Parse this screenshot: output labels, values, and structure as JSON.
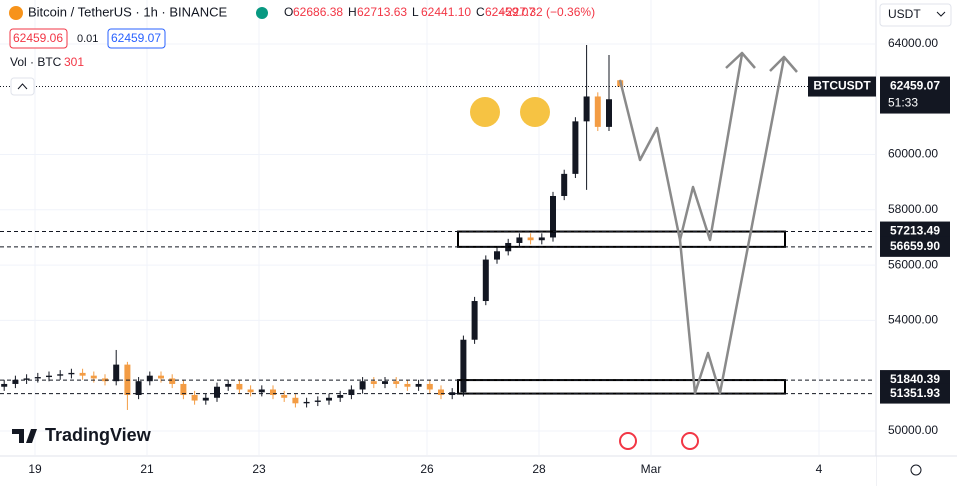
{
  "header": {
    "symbol_title": "Bitcoin / TetherUS · 1h · BINANCE",
    "ohlc": [
      {
        "label": "O",
        "value": "62686.38"
      },
      {
        "label": "H",
        "value": "62713.63"
      },
      {
        "label": "L",
        "value": "62441.10"
      },
      {
        "label": "C",
        "value": "62459.07"
      }
    ],
    "change": "−227.32 (−0.36%)",
    "bid": "62459.06",
    "spread": "0.01",
    "ask": "62459.07",
    "volume_label": "Vol · BTC",
    "volume_value": "301",
    "currency": "USDT",
    "brand": "TradingView"
  },
  "chart_data": {
    "type": "candlestick",
    "x": [
      18.45,
      18.65,
      18.85,
      19.05,
      19.25,
      19.45,
      19.65,
      19.85,
      20.05,
      20.25,
      20.45,
      20.65,
      20.85,
      21.05,
      21.25,
      21.45,
      21.65,
      21.85,
      22.05,
      22.25,
      22.45,
      22.65,
      22.85,
      23.05,
      23.25,
      23.45,
      23.65,
      23.85,
      24.05,
      24.25,
      24.45,
      24.65,
      24.85,
      25.05,
      25.25,
      25.45,
      25.65,
      25.85,
      26.05,
      26.25,
      26.45,
      26.65,
      26.85,
      27.05,
      27.25,
      27.45,
      27.65,
      27.85,
      28.05,
      28.25,
      28.45,
      28.65,
      28.85,
      29.05,
      29.25,
      29.45
    ],
    "open": [
      51600,
      51700,
      51850,
      51900,
      51950,
      52000,
      52050,
      52100,
      52000,
      51900,
      51800,
      52400,
      51300,
      51800,
      52000,
      51900,
      51700,
      51300,
      51100,
      51200,
      51600,
      51700,
      51500,
      51400,
      51500,
      51300,
      51200,
      51000,
      51050,
      51100,
      51200,
      51300,
      51500,
      51800,
      51700,
      51800,
      51700,
      51600,
      51700,
      51500,
      51300,
      51400,
      53300,
      54700,
      56200,
      56500,
      56800,
      57000,
      56900,
      57000,
      58500,
      59300,
      61200,
      62100,
      61000,
      62686.38
    ],
    "high": [
      51850,
      52000,
      52050,
      52100,
      52150,
      52200,
      52250,
      52250,
      52150,
      52050,
      52930,
      52500,
      51950,
      52150,
      52150,
      52050,
      51850,
      51450,
      51350,
      51750,
      51850,
      51850,
      51650,
      51650,
      51650,
      51450,
      51350,
      51200,
      51250,
      51350,
      51450,
      51650,
      51950,
      51950,
      51950,
      51950,
      51850,
      51850,
      51850,
      51650,
      51550,
      53450,
      54850,
      56350,
      56650,
      56950,
      57150,
      57150,
      57150,
      58650,
      59450,
      61350,
      63960,
      62250,
      63600,
      62713.63
    ],
    "low": [
      51450,
      51550,
      51700,
      51750,
      51800,
      51850,
      51900,
      51850,
      51750,
      51650,
      51650,
      50760,
      51150,
      51650,
      51750,
      51550,
      51150,
      50950,
      50950,
      51050,
      51450,
      51350,
      51250,
      51250,
      51150,
      51050,
      50850,
      50850,
      50900,
      50950,
      51050,
      51150,
      51350,
      51550,
      51550,
      51550,
      51450,
      51450,
      51350,
      51150,
      51150,
      51250,
      53150,
      54550,
      56050,
      56350,
      56650,
      56750,
      56750,
      56850,
      58350,
      59150,
      58720,
      60850,
      60850,
      62441.1
    ],
    "close": [
      51700,
      51850,
      51900,
      51950,
      52000,
      52050,
      52100,
      52000,
      51900,
      51800,
      52400,
      51300,
      51800,
      52000,
      51900,
      51700,
      51300,
      51100,
      51200,
      51600,
      51700,
      51500,
      51400,
      51500,
      51300,
      51200,
      51000,
      51050,
      51100,
      51200,
      51300,
      51500,
      51800,
      51700,
      51800,
      51700,
      51600,
      51700,
      51500,
      51300,
      51400,
      53300,
      54700,
      56200,
      56500,
      56800,
      57000,
      56900,
      57000,
      58500,
      59300,
      61200,
      62100,
      61000,
      62000,
      62459.07
    ],
    "up_color": "#131722",
    "down_color": "#f39c44",
    "xlim": [
      18.375,
      34
    ],
    "xticks": [
      19,
      21,
      23,
      26,
      28,
      {
        "value": 30,
        "label": "Mar"
      },
      {
        "value": 33,
        "label": "4"
      }
    ],
    "ylim": [
      49130,
      65590
    ],
    "yticks": [
      {
        "value": 50000,
        "label": "50000.00"
      },
      {
        "value": 54000,
        "label": "54000.00"
      },
      {
        "value": 56000,
        "label": "56000.00"
      },
      {
        "value": 58000,
        "label": "58000.00"
      },
      {
        "value": 60000,
        "label": "60000.00"
      },
      {
        "value": 64000,
        "label": "64000.00"
      }
    ],
    "grid": true,
    "levels": [
      {
        "value": 57213.49,
        "label": "57213.49"
      },
      {
        "value": 56659.9,
        "label": "56659.90"
      },
      {
        "value": 51840.39,
        "label": "51840.39"
      },
      {
        "value": 51351.93,
        "label": "51351.93"
      }
    ],
    "last_price": {
      "value": 62459.07,
      "label": "62459.07",
      "symbol": "BTCUSDT",
      "countdown": "51:33"
    }
  }
}
